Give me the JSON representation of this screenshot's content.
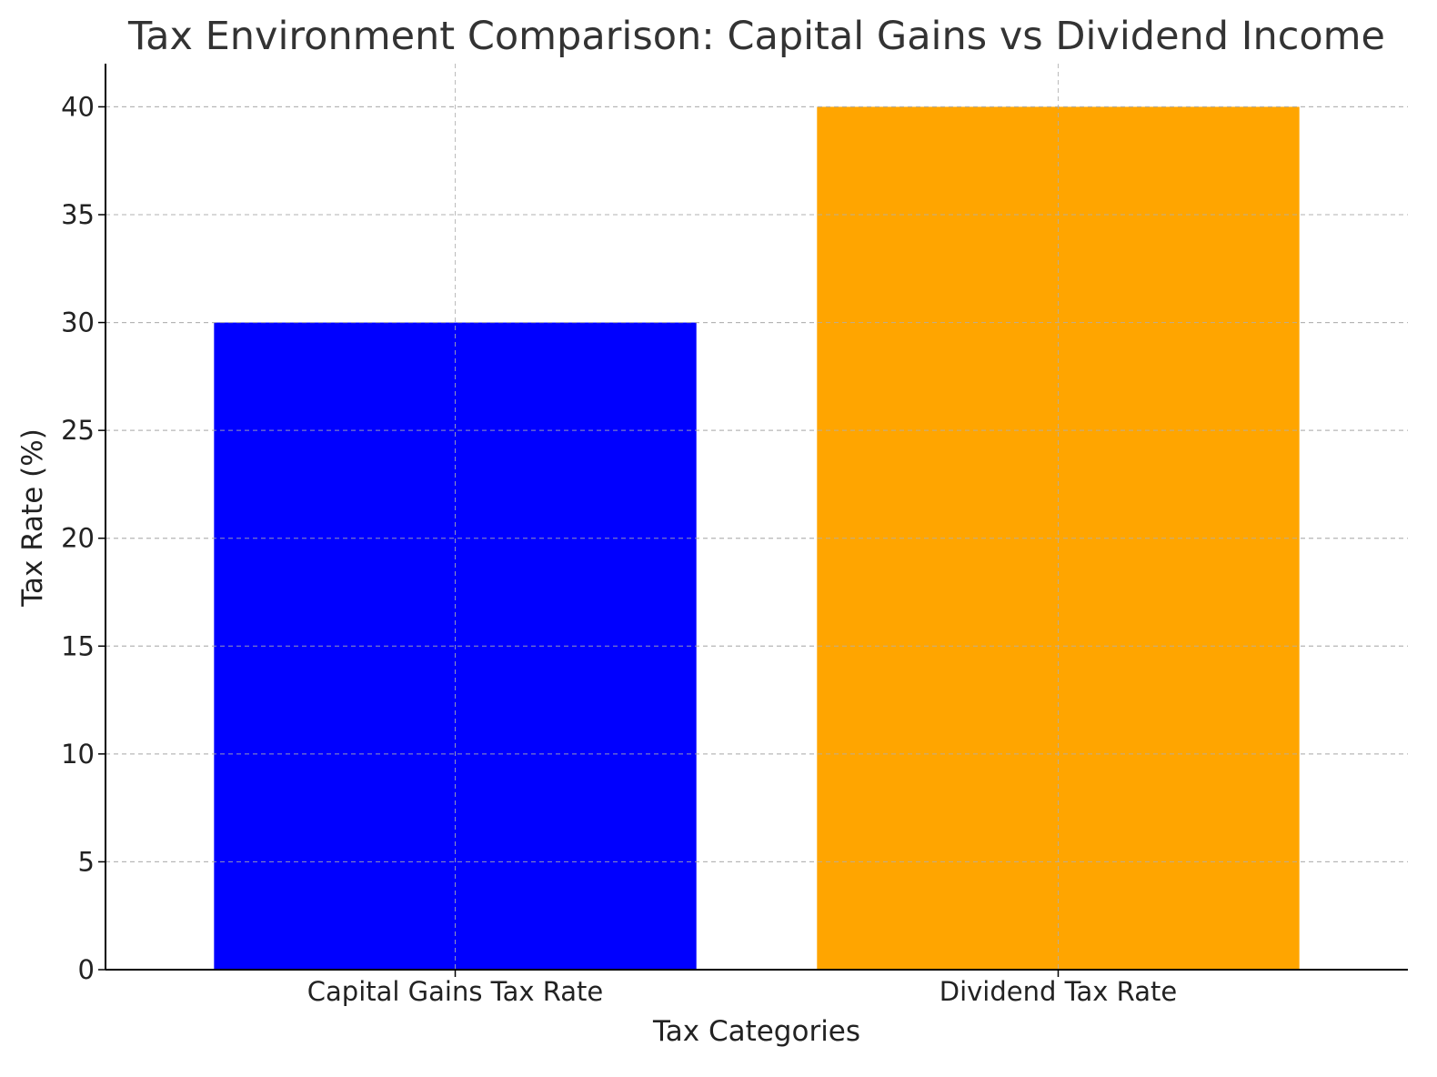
{
  "chart_data": {
    "type": "bar",
    "title": "Tax Environment Comparison: Capital Gains vs Dividend Income",
    "xlabel": "Tax Categories",
    "ylabel": "Tax Rate (%)",
    "categories": [
      "Capital Gains Tax Rate",
      "Dividend Tax Rate"
    ],
    "values": [
      30,
      40
    ],
    "colors": [
      "#0000ff",
      "#ffa500"
    ],
    "ylim": [
      0,
      42
    ],
    "yticks": [
      0,
      5,
      10,
      15,
      20,
      25,
      30,
      35,
      40
    ],
    "grid": true,
    "legend": "none"
  }
}
